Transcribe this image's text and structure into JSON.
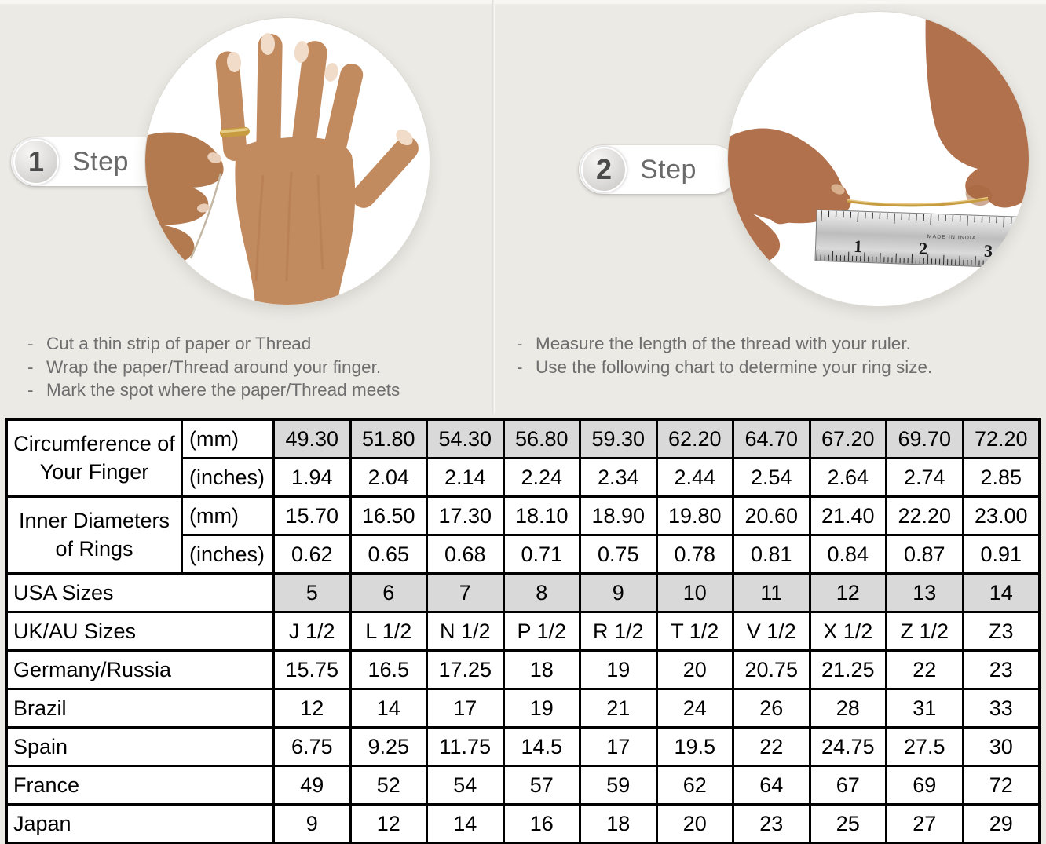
{
  "colors": {
    "background": "#eceae5",
    "table_shaded_cell": "#d9d9d9",
    "table_border": "#000000",
    "step_text": "#6a6a6a",
    "instruction_text": "#6e6e6e",
    "gold": "#c79b3f",
    "skin_light": "#c28a5f",
    "skin_dark": "#b0714c"
  },
  "steps": [
    {
      "number": "1",
      "label": "Step",
      "illustration": "hand-with-gold-ring-photo",
      "bullets": [
        "Cut a thin strip of paper or Thread",
        "Wrap the paper/Thread around your finger.",
        "Mark the spot where the paper/Thread meets"
      ]
    },
    {
      "number": "2",
      "label": "Step",
      "illustration": "hands-measuring-thread-with-ruler-photo",
      "ruler": {
        "numbers": [
          "1",
          "2",
          "3"
        ],
        "made_in": "MADE IN INDIA"
      },
      "bullets": [
        "Measure the length of the thread with your ruler.",
        "Use the following chart to determine your ring size."
      ]
    }
  ],
  "table": {
    "row_groups": [
      {
        "label": "Circumference of Your Finger",
        "rows": [
          {
            "unit": "(mm)",
            "shaded": true,
            "values": [
              "49.30",
              "51.80",
              "54.30",
              "56.80",
              "59.30",
              "62.20",
              "64.70",
              "67.20",
              "69.70",
              "72.20"
            ]
          },
          {
            "unit": "(inches)",
            "shaded": false,
            "values": [
              "1.94",
              "2.04",
              "2.14",
              "2.24",
              "2.34",
              "2.44",
              "2.54",
              "2.64",
              "2.74",
              "2.85"
            ]
          }
        ]
      },
      {
        "label": "Inner Diameters of Rings",
        "rows": [
          {
            "unit": "(mm)",
            "shaded": false,
            "values": [
              "15.70",
              "16.50",
              "17.30",
              "18.10",
              "18.90",
              "19.80",
              "20.60",
              "21.40",
              "22.20",
              "23.00"
            ]
          },
          {
            "unit": "(inches)",
            "shaded": false,
            "values": [
              "0.62",
              "0.65",
              "0.68",
              "0.71",
              "0.75",
              "0.78",
              "0.81",
              "0.84",
              "0.87",
              "0.91"
            ]
          }
        ]
      }
    ],
    "size_rows": [
      {
        "label": "USA Sizes",
        "shaded": true,
        "values": [
          "5",
          "6",
          "7",
          "8",
          "9",
          "10",
          "11",
          "12",
          "13",
          "14"
        ]
      },
      {
        "label": "UK/AU Sizes",
        "shaded": false,
        "values": [
          "J 1/2",
          "L 1/2",
          "N 1/2",
          "P 1/2",
          "R 1/2",
          "T 1/2",
          "V 1/2",
          "X 1/2",
          "Z 1/2",
          "Z3"
        ]
      },
      {
        "label": "Germany/Russia",
        "shaded": false,
        "values": [
          "15.75",
          "16.5",
          "17.25",
          "18",
          "19",
          "20",
          "20.75",
          "21.25",
          "22",
          "23"
        ]
      },
      {
        "label": "Brazil",
        "shaded": false,
        "values": [
          "12",
          "14",
          "17",
          "19",
          "21",
          "24",
          "26",
          "28",
          "31",
          "33"
        ]
      },
      {
        "label": "Spain",
        "shaded": false,
        "values": [
          "6.75",
          "9.25",
          "11.75",
          "14.5",
          "17",
          "19.5",
          "22",
          "24.75",
          "27.5",
          "30"
        ]
      },
      {
        "label": "France",
        "shaded": false,
        "values": [
          "49",
          "52",
          "54",
          "57",
          "59",
          "62",
          "64",
          "67",
          "69",
          "72"
        ]
      },
      {
        "label": "Japan",
        "shaded": false,
        "values": [
          "9",
          "12",
          "14",
          "16",
          "18",
          "20",
          "23",
          "25",
          "27",
          "29"
        ]
      }
    ]
  }
}
